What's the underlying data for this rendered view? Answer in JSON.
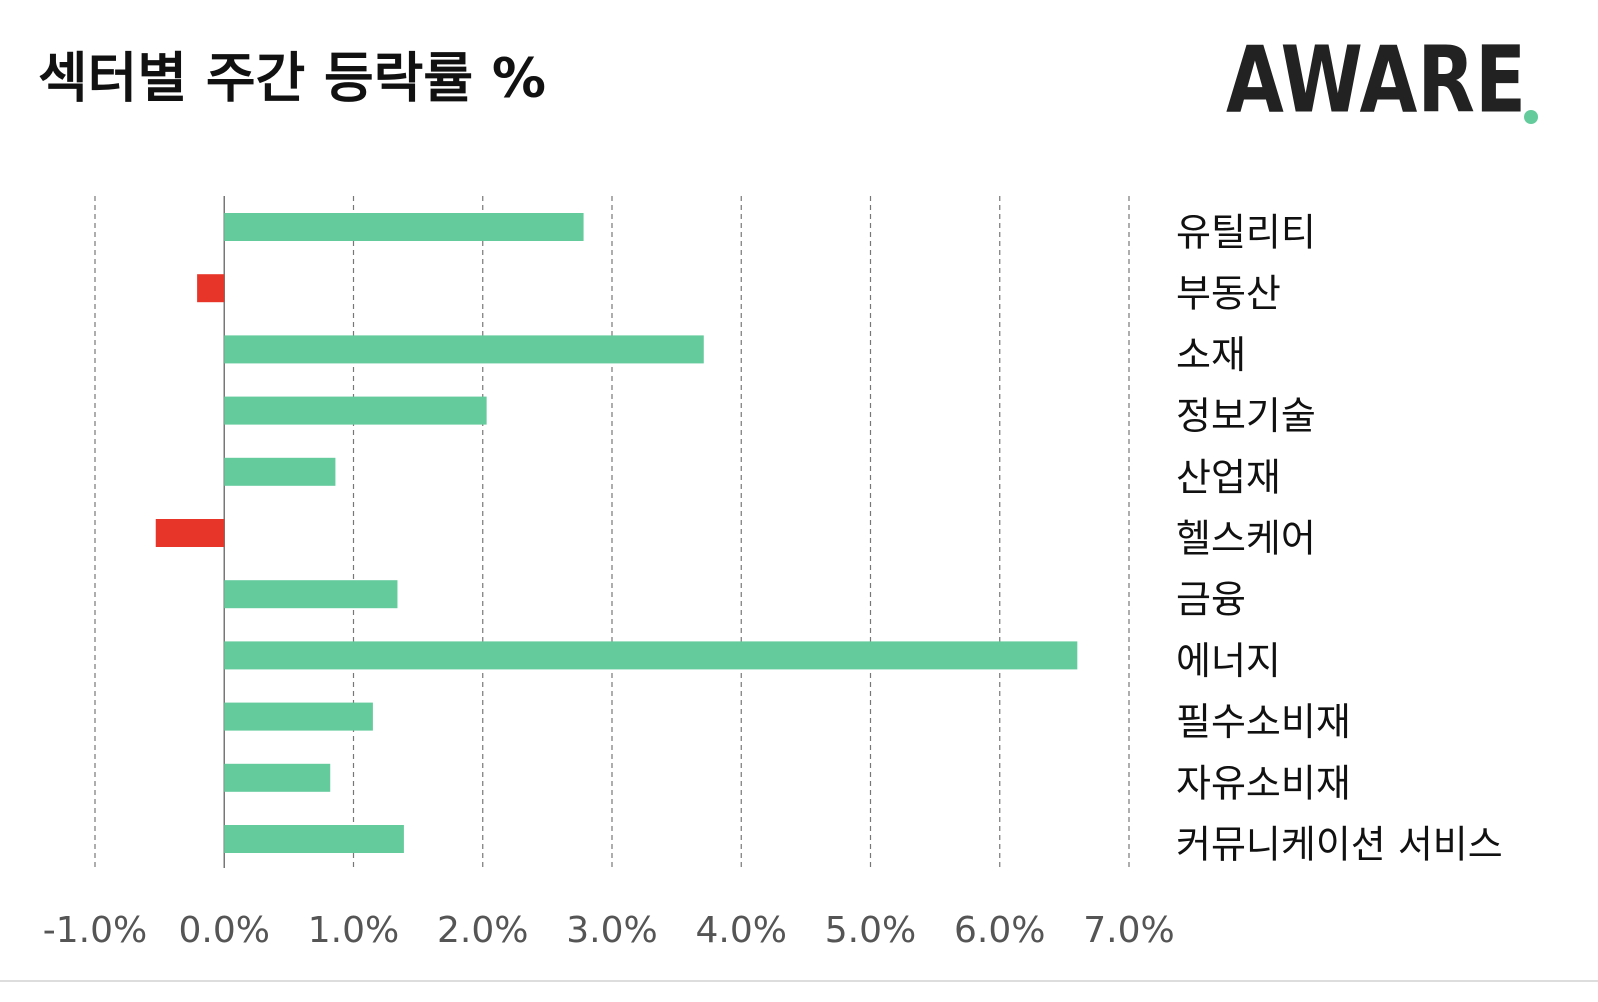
{
  "chart_data": {
    "type": "bar",
    "orientation": "horizontal",
    "title": "섹터별 주간 등락률 %",
    "logo": "AWARE",
    "categories": [
      "유틸리티",
      "부동산",
      "소재",
      "정보기술",
      "산업재",
      "헬스케어",
      "금융",
      "에너지",
      "필수소비재",
      "자유소비재",
      "커뮤니케이션 서비스"
    ],
    "values": [
      2.78,
      -0.21,
      3.71,
      2.03,
      0.86,
      -0.53,
      1.34,
      6.6,
      1.15,
      0.82,
      1.39
    ],
    "positive_color": "#63cb9c",
    "negative_color": "#e8352a",
    "xlim": [
      -1.0,
      7.0
    ],
    "xticks": [
      {
        "value": -1.0,
        "label": "-1.0%"
      },
      {
        "value": 0.0,
        "label": "0.0%"
      },
      {
        "value": 1.0,
        "label": "1.0%"
      },
      {
        "value": 2.0,
        "label": "2.0%"
      },
      {
        "value": 3.0,
        "label": "3.0%"
      },
      {
        "value": 4.0,
        "label": "4.0%"
      },
      {
        "value": 5.0,
        "label": "5.0%"
      },
      {
        "value": 6.0,
        "label": "6.0%"
      },
      {
        "value": 7.0,
        "label": "7.0%"
      }
    ],
    "grid": true
  }
}
